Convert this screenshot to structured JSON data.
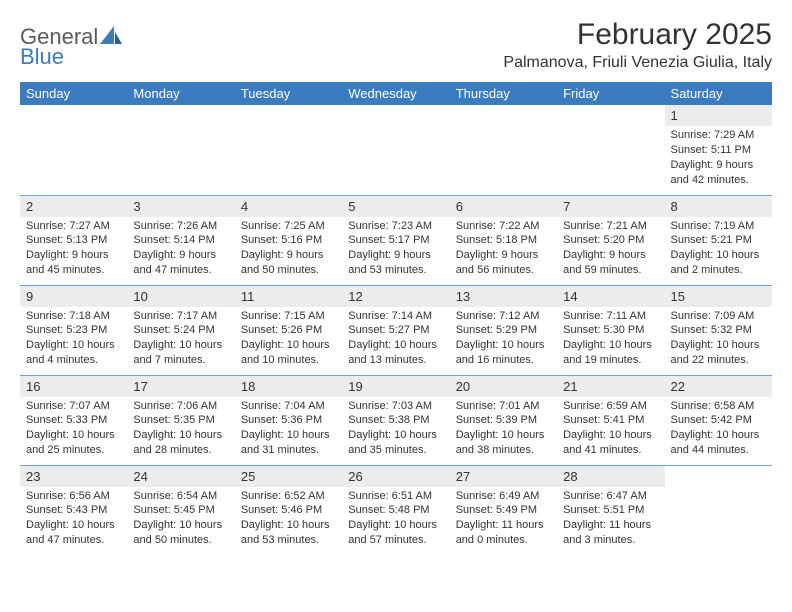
{
  "logo": {
    "text1": "General",
    "text2": "Blue"
  },
  "title": "February 2025",
  "location": "Palmanova, Friuli Venezia Giulia, Italy",
  "colors": {
    "header_bg": "#3b7bbf",
    "header_text": "#ffffff",
    "daynum_bg": "#ececec",
    "row_border": "#6fa3d4",
    "logo_gray": "#5b5b5b",
    "logo_blue": "#3b7bbf"
  },
  "day_headers": [
    "Sunday",
    "Monday",
    "Tuesday",
    "Wednesday",
    "Thursday",
    "Friday",
    "Saturday"
  ],
  "weeks": [
    [
      {
        "n": "",
        "sr": "",
        "ss": "",
        "dl": ""
      },
      {
        "n": "",
        "sr": "",
        "ss": "",
        "dl": ""
      },
      {
        "n": "",
        "sr": "",
        "ss": "",
        "dl": ""
      },
      {
        "n": "",
        "sr": "",
        "ss": "",
        "dl": ""
      },
      {
        "n": "",
        "sr": "",
        "ss": "",
        "dl": ""
      },
      {
        "n": "",
        "sr": "",
        "ss": "",
        "dl": ""
      },
      {
        "n": "1",
        "sr": "Sunrise: 7:29 AM",
        "ss": "Sunset: 5:11 PM",
        "dl": "Daylight: 9 hours and 42 minutes."
      }
    ],
    [
      {
        "n": "2",
        "sr": "Sunrise: 7:27 AM",
        "ss": "Sunset: 5:13 PM",
        "dl": "Daylight: 9 hours and 45 minutes."
      },
      {
        "n": "3",
        "sr": "Sunrise: 7:26 AM",
        "ss": "Sunset: 5:14 PM",
        "dl": "Daylight: 9 hours and 47 minutes."
      },
      {
        "n": "4",
        "sr": "Sunrise: 7:25 AM",
        "ss": "Sunset: 5:16 PM",
        "dl": "Daylight: 9 hours and 50 minutes."
      },
      {
        "n": "5",
        "sr": "Sunrise: 7:23 AM",
        "ss": "Sunset: 5:17 PM",
        "dl": "Daylight: 9 hours and 53 minutes."
      },
      {
        "n": "6",
        "sr": "Sunrise: 7:22 AM",
        "ss": "Sunset: 5:18 PM",
        "dl": "Daylight: 9 hours and 56 minutes."
      },
      {
        "n": "7",
        "sr": "Sunrise: 7:21 AM",
        "ss": "Sunset: 5:20 PM",
        "dl": "Daylight: 9 hours and 59 minutes."
      },
      {
        "n": "8",
        "sr": "Sunrise: 7:19 AM",
        "ss": "Sunset: 5:21 PM",
        "dl": "Daylight: 10 hours and 2 minutes."
      }
    ],
    [
      {
        "n": "9",
        "sr": "Sunrise: 7:18 AM",
        "ss": "Sunset: 5:23 PM",
        "dl": "Daylight: 10 hours and 4 minutes."
      },
      {
        "n": "10",
        "sr": "Sunrise: 7:17 AM",
        "ss": "Sunset: 5:24 PM",
        "dl": "Daylight: 10 hours and 7 minutes."
      },
      {
        "n": "11",
        "sr": "Sunrise: 7:15 AM",
        "ss": "Sunset: 5:26 PM",
        "dl": "Daylight: 10 hours and 10 minutes."
      },
      {
        "n": "12",
        "sr": "Sunrise: 7:14 AM",
        "ss": "Sunset: 5:27 PM",
        "dl": "Daylight: 10 hours and 13 minutes."
      },
      {
        "n": "13",
        "sr": "Sunrise: 7:12 AM",
        "ss": "Sunset: 5:29 PM",
        "dl": "Daylight: 10 hours and 16 minutes."
      },
      {
        "n": "14",
        "sr": "Sunrise: 7:11 AM",
        "ss": "Sunset: 5:30 PM",
        "dl": "Daylight: 10 hours and 19 minutes."
      },
      {
        "n": "15",
        "sr": "Sunrise: 7:09 AM",
        "ss": "Sunset: 5:32 PM",
        "dl": "Daylight: 10 hours and 22 minutes."
      }
    ],
    [
      {
        "n": "16",
        "sr": "Sunrise: 7:07 AM",
        "ss": "Sunset: 5:33 PM",
        "dl": "Daylight: 10 hours and 25 minutes."
      },
      {
        "n": "17",
        "sr": "Sunrise: 7:06 AM",
        "ss": "Sunset: 5:35 PM",
        "dl": "Daylight: 10 hours and 28 minutes."
      },
      {
        "n": "18",
        "sr": "Sunrise: 7:04 AM",
        "ss": "Sunset: 5:36 PM",
        "dl": "Daylight: 10 hours and 31 minutes."
      },
      {
        "n": "19",
        "sr": "Sunrise: 7:03 AM",
        "ss": "Sunset: 5:38 PM",
        "dl": "Daylight: 10 hours and 35 minutes."
      },
      {
        "n": "20",
        "sr": "Sunrise: 7:01 AM",
        "ss": "Sunset: 5:39 PM",
        "dl": "Daylight: 10 hours and 38 minutes."
      },
      {
        "n": "21",
        "sr": "Sunrise: 6:59 AM",
        "ss": "Sunset: 5:41 PM",
        "dl": "Daylight: 10 hours and 41 minutes."
      },
      {
        "n": "22",
        "sr": "Sunrise: 6:58 AM",
        "ss": "Sunset: 5:42 PM",
        "dl": "Daylight: 10 hours and 44 minutes."
      }
    ],
    [
      {
        "n": "23",
        "sr": "Sunrise: 6:56 AM",
        "ss": "Sunset: 5:43 PM",
        "dl": "Daylight: 10 hours and 47 minutes."
      },
      {
        "n": "24",
        "sr": "Sunrise: 6:54 AM",
        "ss": "Sunset: 5:45 PM",
        "dl": "Daylight: 10 hours and 50 minutes."
      },
      {
        "n": "25",
        "sr": "Sunrise: 6:52 AM",
        "ss": "Sunset: 5:46 PM",
        "dl": "Daylight: 10 hours and 53 minutes."
      },
      {
        "n": "26",
        "sr": "Sunrise: 6:51 AM",
        "ss": "Sunset: 5:48 PM",
        "dl": "Daylight: 10 hours and 57 minutes."
      },
      {
        "n": "27",
        "sr": "Sunrise: 6:49 AM",
        "ss": "Sunset: 5:49 PM",
        "dl": "Daylight: 11 hours and 0 minutes."
      },
      {
        "n": "28",
        "sr": "Sunrise: 6:47 AM",
        "ss": "Sunset: 5:51 PM",
        "dl": "Daylight: 11 hours and 3 minutes."
      },
      {
        "n": "",
        "sr": "",
        "ss": "",
        "dl": ""
      }
    ]
  ]
}
